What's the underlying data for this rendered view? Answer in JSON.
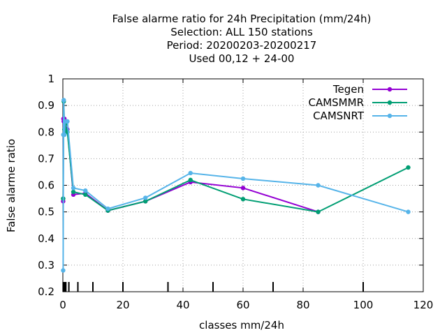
{
  "chart_data": {
    "type": "line",
    "title_lines": [
      "False alarme ratio  for 24h Precipitation (mm/24h)",
      "Selection: ALL    150 stations",
      "Period: 20200203-20200217",
      "Used  00,12  + 24-00"
    ],
    "xlabel": "classes mm/24h",
    "ylabel": "False alarme ratio",
    "xlim": [
      0,
      120
    ],
    "ylim": [
      0.2,
      1
    ],
    "xticks": [
      0,
      20,
      40,
      60,
      80,
      100,
      120
    ],
    "yticks": [
      0.2,
      0.3,
      0.4,
      0.5,
      0.6,
      0.7,
      0.8,
      0.9,
      1
    ],
    "xtick_labels": [
      "0",
      "20",
      "40",
      "60",
      "80",
      "100",
      "120"
    ],
    "ytick_labels": [
      "0.2",
      "0.3",
      "0.4",
      "0.5",
      "0.6",
      "0.7",
      "0.8",
      "0.9",
      "1"
    ],
    "grid": true,
    "legend_position": "top-right",
    "class_marks": [
      0.1,
      0.2,
      0.3,
      0.5,
      0.7,
      1,
      2,
      5,
      10,
      20,
      35,
      50,
      70,
      100
    ],
    "series": [
      {
        "name": "Tegen",
        "color": "#9400d3",
        "x": [
          0.1,
          0.2,
          0.3,
          0.5,
          0.75,
          1.5,
          3.5,
          7.5,
          15,
          27.5,
          42.5,
          60,
          85
        ],
        "y": [
          0.54,
          0.85,
          0.84,
          0.85,
          0.83,
          0.81,
          0.565,
          0.57,
          0.505,
          0.54,
          0.612,
          0.59,
          0.5
        ]
      },
      {
        "name": "CAMSMMR",
        "color": "#009e73",
        "x": [
          0.1,
          0.2,
          0.3,
          0.5,
          0.75,
          1.5,
          3.5,
          7.5,
          15,
          27.5,
          42.5,
          60,
          85,
          115
        ],
        "y": [
          0.55,
          0.79,
          0.915,
          0.81,
          0.83,
          0.8,
          0.575,
          0.565,
          0.505,
          0.54,
          0.62,
          0.548,
          0.5,
          0.667
        ]
      },
      {
        "name": "CAMSNRT",
        "color": "#56b4e9",
        "x": [
          0.1,
          0.2,
          0.3,
          0.5,
          0.75,
          1.5,
          3.5,
          7.5,
          15,
          27.5,
          42.5,
          60,
          85,
          115
        ],
        "y": [
          0.28,
          0.79,
          0.92,
          0.79,
          0.84,
          0.84,
          0.59,
          0.58,
          0.512,
          0.553,
          0.646,
          0.625,
          0.6,
          0.5
        ]
      }
    ]
  }
}
